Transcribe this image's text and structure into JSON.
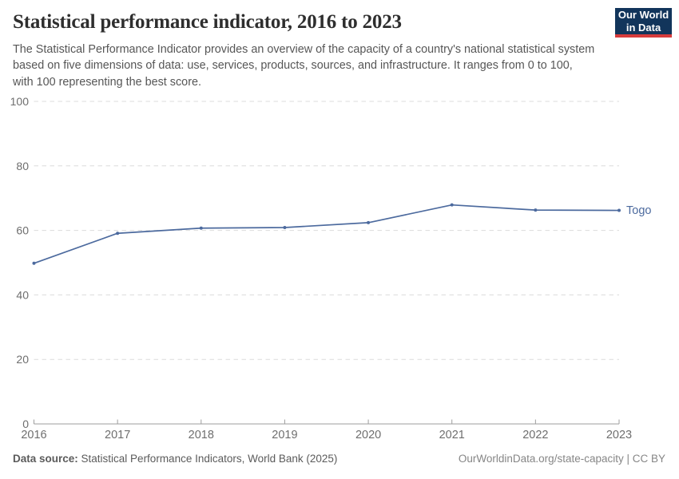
{
  "header": {
    "title": "Statistical performance indicator, 2016 to 2023",
    "subtitle": "The Statistical Performance Indicator provides an overview of the capacity of a country's national statistical system based on five dimensions of data: use, services, products, sources, and infrastructure. It ranges from 0 to 100, with 100 representing the best score.",
    "logo": {
      "line1": "Our World",
      "line2": "in Data"
    }
  },
  "chart_data": {
    "type": "line",
    "title": "Statistical performance indicator, 2016 to 2023",
    "x": [
      2016,
      2017,
      2018,
      2019,
      2020,
      2021,
      2022,
      2023
    ],
    "series": [
      {
        "name": "Togo",
        "values": [
          49.8,
          59.1,
          60.7,
          60.9,
          62.4,
          67.9,
          66.3,
          66.2
        ]
      }
    ],
    "xlabel": "",
    "ylabel": "",
    "ylim": [
      0,
      100
    ],
    "yticks": [
      0,
      20,
      40,
      60,
      80,
      100
    ],
    "grid": true,
    "legend_position": "line-end-label"
  },
  "colors": {
    "series_togo": "#4c6a9e",
    "grid": "#dcdcdc",
    "axis": "#9d9d9d",
    "tick_label": "#6e6e6e",
    "logo_bg": "#12355b",
    "logo_stripe": "#d73c3c"
  },
  "footer": {
    "source_label": "Data source:",
    "source_text": " Statistical Performance Indicators, World Bank (2025)",
    "right_text": "OurWorldinData.org/state-capacity | CC BY"
  }
}
